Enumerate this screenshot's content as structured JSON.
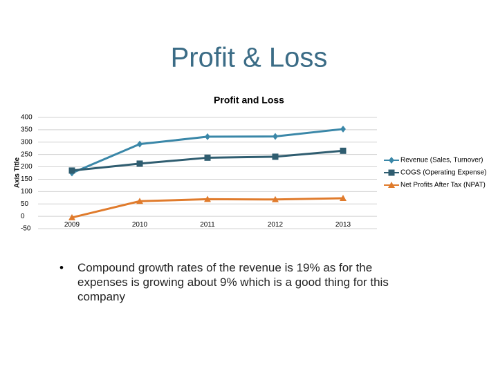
{
  "title": "Profit & Loss",
  "bullets": [
    "Compound growth rates of the revenue is 19% as for the expenses is growing about 9% which is a good thing for this company"
  ],
  "chart_data": {
    "type": "line",
    "title": "Profit and Loss",
    "y_label": "Axis Title",
    "categories": [
      "2009",
      "2010",
      "2011",
      "2012",
      "2013"
    ],
    "series": [
      {
        "name": "Revenue (Sales, Turnover)",
        "color": "#3a87a8",
        "marker": "diamond",
        "values": [
          175,
          292,
          322,
          323,
          353
        ]
      },
      {
        "name": "COGS (Operating Expense)",
        "color": "#2f5d70",
        "marker": "square",
        "values": [
          185,
          213,
          237,
          241,
          265
        ]
      },
      {
        "name": "Net Profits After Tax (NPAT)",
        "color": "#e07b2c",
        "marker": "triangle",
        "values": [
          -5,
          61,
          69,
          68,
          73
        ]
      }
    ],
    "ylim": [
      -50,
      400
    ],
    "yticks": [
      -50,
      0,
      50,
      100,
      150,
      200,
      250,
      300,
      350,
      400
    ],
    "grid": true,
    "legend": "right"
  }
}
